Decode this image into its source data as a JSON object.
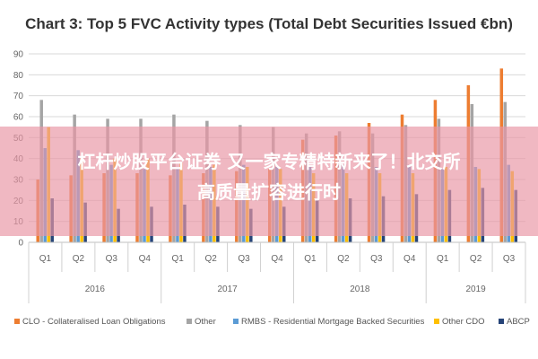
{
  "chart_data": {
    "type": "bar",
    "title": "Chart 3: Top 5 FVC Activity types (Total Debt Securities Issued €bn)",
    "xlabel": "",
    "ylabel": "",
    "ylim": [
      0,
      90
    ],
    "yticks": [
      "0",
      "10",
      "20",
      "30",
      "40",
      "50",
      "60",
      "70",
      "80",
      "90"
    ],
    "grid": true,
    "legend_position": "bottom",
    "categories": [
      "Q1",
      "Q2",
      "Q3",
      "Q4",
      "Q1",
      "Q2",
      "Q3",
      "Q4",
      "Q1",
      "Q2",
      "Q3",
      "Q4",
      "Q1",
      "Q2",
      "Q3"
    ],
    "year_groups": [
      {
        "label": "2016",
        "count": 4
      },
      {
        "label": "2017",
        "count": 4
      },
      {
        "label": "2018",
        "count": 4
      },
      {
        "label": "2019",
        "count": 3
      }
    ],
    "series": [
      {
        "name": "CLO - Collateralised Loan Obligations",
        "color": "#ED7D31",
        "values": [
          30,
          32,
          33,
          33,
          32,
          33,
          34,
          35,
          49,
          51,
          57,
          61,
          68,
          75,
          83
        ]
      },
      {
        "name": "Other",
        "color": "#A5A5A5",
        "values": [
          68,
          61,
          59,
          59,
          61,
          58,
          56,
          55,
          52,
          53,
          52,
          56,
          59,
          66,
          67
        ]
      },
      {
        "name": "RMBS - Residential Mortgage Backed Securities",
        "color": "#5B9BD5",
        "values": [
          45,
          44,
          37,
          35,
          36,
          36,
          37,
          36,
          36,
          37,
          36,
          37,
          35,
          36,
          37
        ]
      },
      {
        "name": "Other CDO",
        "color": "#FFC000",
        "values": [
          55,
          40,
          40,
          40,
          38,
          37,
          36,
          35,
          33,
          33,
          33,
          33,
          36,
          35,
          34
        ]
      },
      {
        "name": "ABCP",
        "color": "#264478",
        "values": [
          21,
          19,
          16,
          17,
          18,
          17,
          16,
          17,
          20,
          21,
          22,
          23,
          25,
          26,
          25
        ]
      }
    ]
  },
  "overlay": {
    "line1": "杠杆炒股平台证券 又一家专精特新来了！北交所",
    "line2": "高质量扩容进行时"
  }
}
